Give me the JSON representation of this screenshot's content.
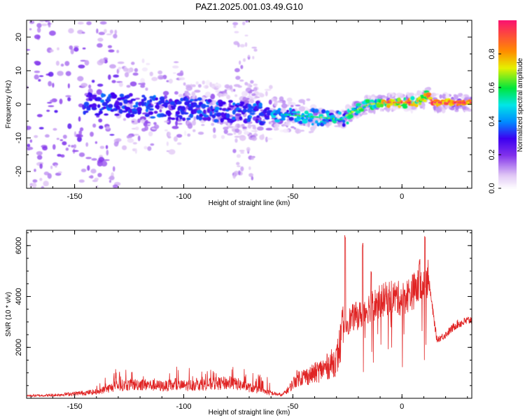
{
  "title": "PAZ1.2025.001.03.49.G10",
  "chart_data": [
    {
      "type": "heatmap",
      "xlabel": "Height of straight line (km)",
      "ylabel": "Frequency (Hz)",
      "xlim": [
        -172,
        32
      ],
      "ylim": [
        -25,
        25
      ],
      "x_ticks": [
        -150,
        -100,
        -50,
        0
      ],
      "y_ticks": [
        -20,
        -10,
        0,
        10,
        20
      ],
      "colorbar": {
        "label": "Normalized spectral amplitude",
        "range": [
          0,
          1
        ],
        "ticks": [
          "0.0",
          "0.2",
          "0.4",
          "0.6",
          "0.8"
        ],
        "colormap": "white-purple-blue-cyan-green-yellow-red"
      },
      "ridge": {
        "x": [
          -172,
          -150,
          -130,
          -110,
          -90,
          -70,
          -55,
          -45,
          -35,
          -28,
          -22,
          -15,
          -8,
          0,
          5,
          10,
          12,
          14,
          32
        ],
        "frequency": [
          0,
          0,
          0,
          -1,
          -1.5,
          -2.5,
          -3,
          -3.5,
          -4,
          -4.5,
          -2,
          0,
          0.5,
          0.5,
          0.5,
          1.5,
          3,
          0.5,
          0.5
        ]
      }
    },
    {
      "type": "line",
      "xlabel": "Height of straight line (km)",
      "ylabel": "SNR (10 * v/v)",
      "xlim": [
        -172,
        32
      ],
      "ylim": [
        0,
        6600
      ],
      "x_ticks": [
        -150,
        -100,
        -50,
        0
      ],
      "y_ticks": [
        2000,
        4000,
        6000
      ],
      "color": "#e02424",
      "envelope": {
        "x": [
          -172,
          -160,
          -140,
          -130,
          -120,
          -110,
          -100,
          -90,
          -80,
          -75,
          -65,
          -55,
          -52,
          -48,
          -42,
          -35,
          -30,
          -27,
          -25,
          -22,
          -18,
          -15,
          -10,
          -5,
          0,
          5,
          10,
          12,
          14,
          16,
          20,
          25,
          32
        ],
        "snr": [
          100,
          120,
          250,
          500,
          550,
          480,
          500,
          550,
          600,
          550,
          300,
          120,
          350,
          800,
          900,
          1200,
          1500,
          2600,
          3000,
          3200,
          3300,
          3600,
          3800,
          4000,
          3900,
          4200,
          4500,
          4800,
          3500,
          2300,
          2500,
          2900,
          3100
        ]
      },
      "spikes": [
        {
          "x": -26,
          "snr": 6500
        },
        {
          "x": -18,
          "snr": 6150
        },
        {
          "x": -14,
          "snr": 5100
        },
        {
          "x": 10.5,
          "snr": 6600
        },
        {
          "x": 8,
          "snr": 5500
        }
      ]
    }
  ]
}
